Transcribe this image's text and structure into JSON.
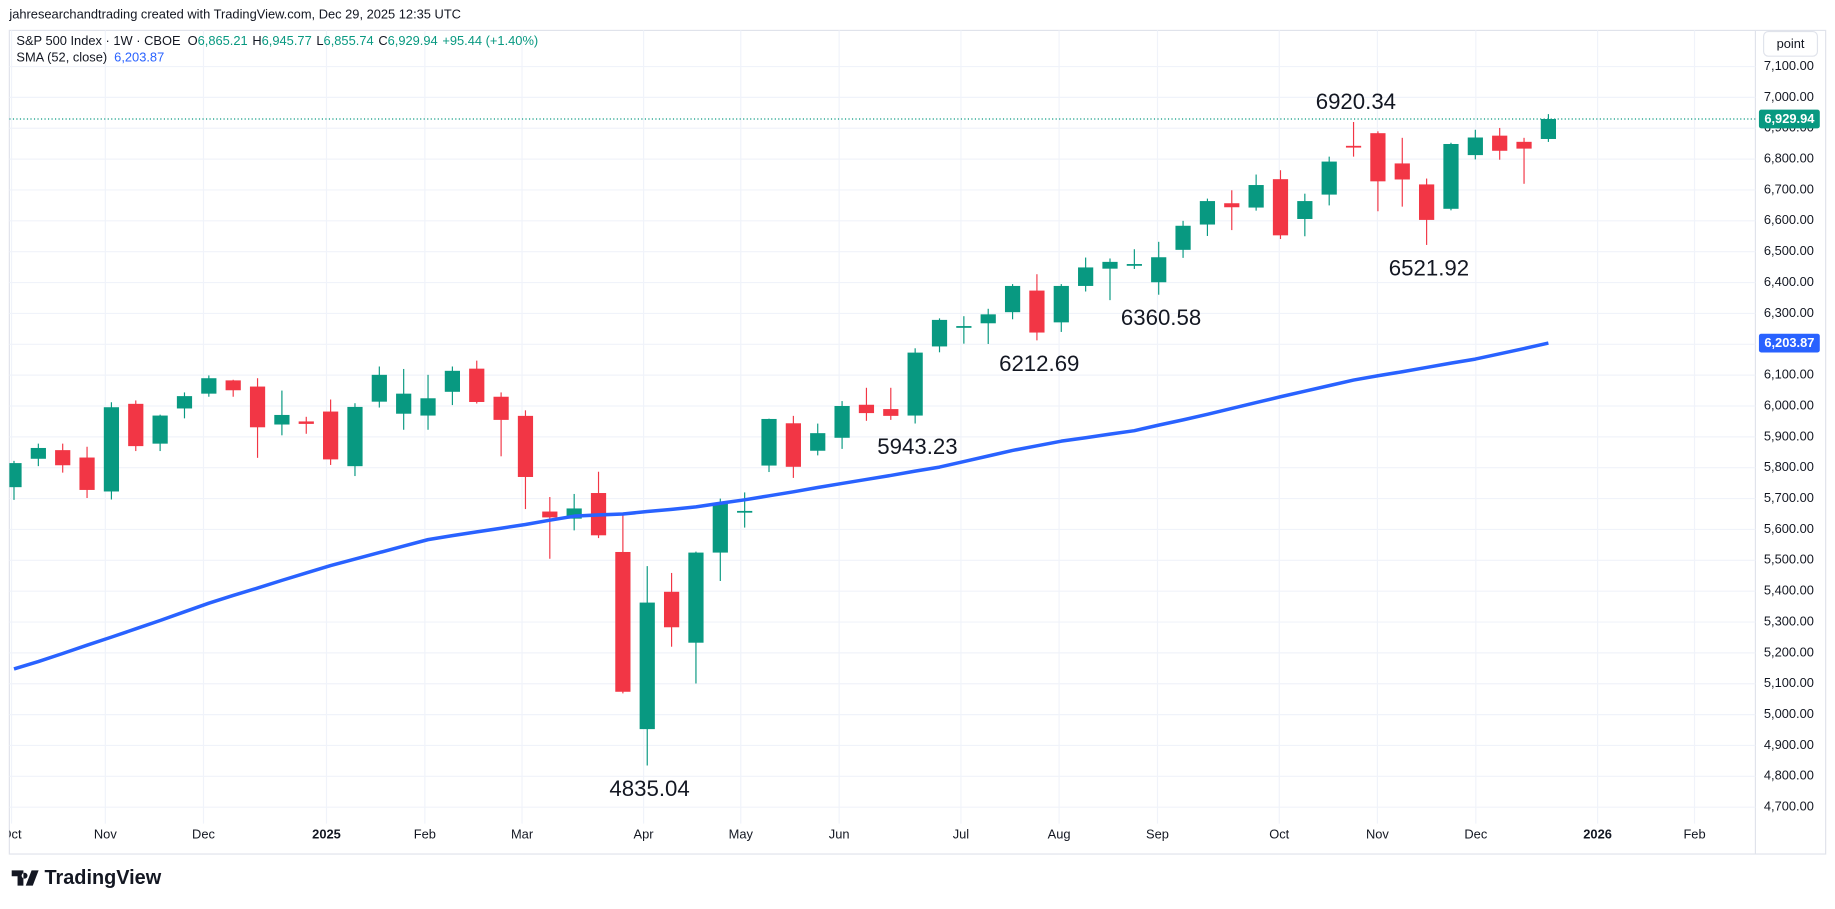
{
  "header": {
    "credit": "jahresearchandtrading created with TradingView.com, Dec 29, 2025 12:35 UTC",
    "symbol": "S&P 500 Index · 1W · CBOE",
    "ohlc": [
      {
        "key": "O",
        "value": "6,865.21"
      },
      {
        "key": "H",
        "value": "6,945.77"
      },
      {
        "key": "L",
        "value": "6,855.74"
      },
      {
        "key": "C",
        "value": "6,929.94"
      }
    ],
    "change": "+95.44 (+1.40%)",
    "sma_name": "SMA (52, close)",
    "sma_value": "6,203.87"
  },
  "unit_button": "point",
  "logo": "TradingView",
  "chart_data": {
    "type": "candlestick",
    "up_color": "#089981",
    "down_color": "#f23645",
    "grid": true,
    "categories": [
      null,
      null,
      null,
      null,
      null,
      null,
      null,
      null,
      null,
      null,
      null,
      null,
      null,
      null,
      null,
      null,
      null,
      null,
      null,
      null,
      null,
      null,
      null,
      null,
      null,
      null,
      null,
      null,
      null,
      null,
      null,
      null,
      null,
      null,
      null,
      null,
      null,
      null,
      null,
      null,
      null,
      null,
      null,
      null,
      null,
      null,
      null,
      null,
      null,
      null,
      null,
      null,
      null,
      null,
      null,
      null,
      null,
      null,
      null,
      null,
      null,
      null,
      null,
      null
    ],
    "open": [
      5737,
      5829,
      5857,
      5833,
      5723,
      6007,
      5878,
      5992,
      6040,
      6083,
      6063,
      5940,
      5950,
      5982,
      5805,
      6014,
      5975,
      5969,
      6046,
      6121,
      6030,
      5968,
      5658,
      5635,
      5718,
      5527,
      4953,
      5398,
      5233,
      5525,
      5655,
      5807,
      5944,
      5855,
      5897,
      6004,
      5990,
      5969,
      6193,
      6255,
      6268,
      6304,
      6374,
      6271,
      6389,
      6445,
      6457,
      6401,
      6506,
      6588,
      6657,
      6643,
      6735,
      6606,
      6685,
      6843,
      6884,
      6786,
      6718,
      6639,
      6813,
      6876,
      6856,
      6865.21
    ],
    "high": [
      5822,
      5878,
      5878,
      5868,
      6012,
      6018,
      5972,
      6044,
      6099,
      6085,
      6090,
      6050,
      5965,
      6021,
      6009,
      6128,
      6120,
      6101,
      6128,
      6147,
      6044,
      5986,
      5705,
      5715,
      5787,
      5655,
      5481,
      5459,
      5528,
      5700,
      5720,
      5959,
      5968,
      5943,
      6016,
      6059,
      6059,
      6187,
      6284,
      6291,
      6315,
      6395,
      6427,
      6395,
      6481,
      6478,
      6508,
      6532,
      6600,
      6672,
      6699,
      6750,
      6764,
      6688,
      6808,
      6920.34,
      6890,
      6869,
      6737,
      6853,
      6895,
      6901,
      6869,
      6945.77
    ],
    "low": [
      5696,
      5805,
      5784,
      5702,
      5697,
      5854,
      5854,
      5960,
      6030,
      6030,
      5832,
      5905,
      5910,
      5809,
      5773,
      5995,
      5923,
      5923,
      6003,
      6008,
      5837,
      5666,
      5505,
      5597,
      5572,
      5069,
      4835.04,
      5220,
      5101,
      5433,
      5606,
      5786,
      5767,
      5840,
      5861,
      5952,
      5955,
      5943.23,
      6174,
      6202,
      6201,
      6281,
      6212.69,
      6240,
      6371,
      6343,
      6444,
      6360.58,
      6480,
      6551,
      6570,
      6633,
      6541,
      6550,
      6650,
      6808,
      6631,
      6646,
      6521.92,
      6634,
      6799,
      6798,
      6720,
      6855.74
    ],
    "close": [
      5815,
      5864,
      5808,
      5728,
      5996,
      5870,
      5969,
      6032,
      6090,
      6051,
      5931,
      5971,
      5942,
      5827,
      5997,
      6101,
      6040,
      6025,
      6114,
      6013,
      5955,
      5770,
      5639,
      5668,
      5581,
      5074,
      5363,
      5283,
      5525,
      5686,
      5660,
      5958,
      5803,
      5912,
      6000,
      5977,
      5968,
      6173,
      6279,
      6259,
      6297,
      6389,
      6238,
      6389,
      6449,
      6467,
      6460,
      6482,
      6584,
      6664,
      6644,
      6716,
      6553,
      6664,
      6792,
      6840,
      6728,
      6734,
      6603,
      6849,
      6870,
      6827,
      6834,
      6929.94
    ],
    "sma": {
      "color": "#2962ff",
      "values": [
        5148,
        5172,
        5198,
        5225,
        5251,
        5278,
        5305,
        5333,
        5361,
        5386,
        5410,
        5435,
        5459,
        5483,
        5504,
        5525,
        5546,
        5567,
        5580,
        5592,
        5604,
        5616,
        5630,
        5643,
        5647,
        5650,
        5658,
        5665,
        5673,
        5685,
        5696,
        5709,
        5722,
        5736,
        5749,
        5762,
        5775,
        5789,
        5802,
        5820,
        5838,
        5856,
        5871,
        5886,
        5897,
        5909,
        5920,
        5938,
        5955,
        5973,
        5992,
        6011,
        6030,
        6048,
        6066,
        6084,
        6098,
        6111,
        6125,
        6139,
        6152,
        6169,
        6186,
        6203.87
      ]
    },
    "last_close_label": "6,929.94",
    "sma_label": "6,203.87",
    "annotations": [
      6920.34,
      4835.04,
      5943.23,
      6212.69,
      6360.58,
      6521.92
    ],
    "xlim": [
      -0.19,
      71.5
    ],
    "xticks": [
      {
        "value": -0.1,
        "label": "Oct"
      },
      {
        "value": 3.75,
        "label": "Nov"
      },
      {
        "value": 7.78,
        "label": "Dec"
      },
      {
        "value": 12.83,
        "label": "2025"
      },
      {
        "value": 16.87,
        "label": "Feb"
      },
      {
        "value": 20.86,
        "label": "Mar"
      },
      {
        "value": 25.85,
        "label": "Apr"
      },
      {
        "value": 29.84,
        "label": "May"
      },
      {
        "value": 33.88,
        "label": "Jun"
      },
      {
        "value": 38.88,
        "label": "Jul"
      },
      {
        "value": 42.91,
        "label": "Aug"
      },
      {
        "value": 46.95,
        "label": "Sep"
      },
      {
        "value": 51.95,
        "label": "Oct"
      },
      {
        "value": 55.98,
        "label": "Nov"
      },
      {
        "value": 60.02,
        "label": "Dec"
      },
      {
        "value": 65.02,
        "label": "2026"
      },
      {
        "value": 69.0,
        "label": "Feb"
      }
    ],
    "ylim": [
      4662,
      7217
    ],
    "yticks": [
      {
        "value": 4700,
        "label": "4,700.00"
      },
      {
        "value": 4800,
        "label": "4,800.00"
      },
      {
        "value": 4900,
        "label": "4,900.00"
      },
      {
        "value": 5000,
        "label": "5,000.00"
      },
      {
        "value": 5100,
        "label": "5,100.00"
      },
      {
        "value": 5200,
        "label": "5,200.00"
      },
      {
        "value": 5300,
        "label": "5,300.00"
      },
      {
        "value": 5400,
        "label": "5,400.00"
      },
      {
        "value": 5500,
        "label": "5,500.00"
      },
      {
        "value": 5600,
        "label": "5,600.00"
      },
      {
        "value": 5700,
        "label": "5,700.00"
      },
      {
        "value": 5800,
        "label": "5,800.00"
      },
      {
        "value": 5900,
        "label": "5,900.00"
      },
      {
        "value": 6000,
        "label": "6,000.00"
      },
      {
        "value": 6100,
        "label": "6,100.00"
      },
      {
        "value": 6200,
        "label": "6,200.00"
      },
      {
        "value": 6300,
        "label": "6,300.00"
      },
      {
        "value": 6400,
        "label": "6,400.00"
      },
      {
        "value": 6500,
        "label": "6,500.00"
      },
      {
        "value": 6600,
        "label": "6,600.00"
      },
      {
        "value": 6700,
        "label": "6,700.00"
      },
      {
        "value": 6800,
        "label": "6,800.00"
      },
      {
        "value": 6900,
        "label": "6,900.00"
      },
      {
        "value": 7000,
        "label": "7,000.00"
      },
      {
        "value": 7100,
        "label": "7,100.00"
      }
    ]
  }
}
